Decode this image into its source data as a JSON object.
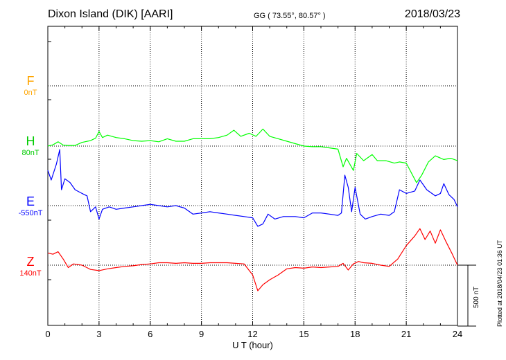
{
  "header": {
    "station": "Dixon Island (DIK)  [AARI]",
    "coords": "GG ( 73.55°,  80.57° )",
    "date": "2018/03/23"
  },
  "footer": {
    "plotted": "Plotted at 2018/04/23 01:36 UT",
    "scale_label": "500 nT"
  },
  "components": [
    {
      "letter": "F",
      "baseline": "0nT",
      "color": "#ffa500"
    },
    {
      "letter": "H",
      "baseline": "80nT",
      "color": "#00ff00"
    },
    {
      "letter": "E",
      "baseline": "-550nT",
      "color": "#0000ff"
    },
    {
      "letter": "Z",
      "baseline": "140nT",
      "color": "#ff0000"
    }
  ],
  "chart_data": {
    "type": "line",
    "xlabel": "U T (hour)",
    "x_ticks": [
      "0",
      "3",
      "6",
      "9",
      "12",
      "15",
      "18",
      "21",
      "24"
    ],
    "xlim": [
      0,
      24
    ],
    "grid": true,
    "legend": "left",
    "units": "nT",
    "scale_bar_nT": 500,
    "series": [
      {
        "name": "F",
        "color": "#ffa500",
        "baseline_nT": 0,
        "points": []
      },
      {
        "name": "H",
        "color": "#00ff00",
        "baseline_nT": 80,
        "points": [
          [
            0,
            80
          ],
          [
            0.3,
            90
          ],
          [
            0.6,
            115
          ],
          [
            0.9,
            88
          ],
          [
            1.2,
            85
          ],
          [
            1.6,
            85
          ],
          [
            2.0,
            110
          ],
          [
            2.5,
            125
          ],
          [
            2.8,
            145
          ],
          [
            3.0,
            200
          ],
          [
            3.2,
            150
          ],
          [
            3.5,
            170
          ],
          [
            4.0,
            150
          ],
          [
            4.5,
            140
          ],
          [
            5.0,
            125
          ],
          [
            5.5,
            120
          ],
          [
            6.0,
            125
          ],
          [
            6.5,
            115
          ],
          [
            7.0,
            140
          ],
          [
            7.5,
            120
          ],
          [
            8.0,
            120
          ],
          [
            8.5,
            140
          ],
          [
            9.0,
            140
          ],
          [
            9.5,
            140
          ],
          [
            10.0,
            150
          ],
          [
            10.5,
            170
          ],
          [
            10.9,
            210
          ],
          [
            11.3,
            160
          ],
          [
            11.8,
            185
          ],
          [
            12.2,
            160
          ],
          [
            12.4,
            190
          ],
          [
            12.6,
            220
          ],
          [
            13.0,
            160
          ],
          [
            13.5,
            140
          ],
          [
            14.0,
            120
          ],
          [
            14.5,
            100
          ],
          [
            15.0,
            80
          ],
          [
            15.5,
            75
          ],
          [
            16.0,
            75
          ],
          [
            16.5,
            65
          ],
          [
            17.0,
            55
          ],
          [
            17.3,
            -90
          ],
          [
            17.5,
            -20
          ],
          [
            17.9,
            -120
          ],
          [
            18.1,
            20
          ],
          [
            18.5,
            -40
          ],
          [
            19.0,
            10
          ],
          [
            19.3,
            -40
          ],
          [
            19.8,
            -40
          ],
          [
            20.3,
            -60
          ],
          [
            20.6,
            -50
          ],
          [
            21.0,
            -60
          ],
          [
            21.3,
            -140
          ],
          [
            21.6,
            -220
          ],
          [
            21.9,
            -160
          ],
          [
            22.3,
            -50
          ],
          [
            22.7,
            0
          ],
          [
            23.2,
            -30
          ],
          [
            23.6,
            -20
          ],
          [
            24.0,
            -40
          ]
        ]
      },
      {
        "name": "E",
        "color": "#0000ff",
        "baseline_nT": -550,
        "points": [
          [
            0,
            -260
          ],
          [
            0.2,
            -340
          ],
          [
            0.5,
            -210
          ],
          [
            0.7,
            -90
          ],
          [
            0.8,
            -420
          ],
          [
            1.0,
            -330
          ],
          [
            1.3,
            -360
          ],
          [
            1.6,
            -420
          ],
          [
            2.0,
            -450
          ],
          [
            2.3,
            -470
          ],
          [
            2.5,
            -600
          ],
          [
            2.8,
            -560
          ],
          [
            3.0,
            -660
          ],
          [
            3.2,
            -580
          ],
          [
            3.6,
            -560
          ],
          [
            4.0,
            -580
          ],
          [
            4.5,
            -570
          ],
          [
            5.0,
            -560
          ],
          [
            5.5,
            -550
          ],
          [
            6.0,
            -540
          ],
          [
            6.5,
            -550
          ],
          [
            7.0,
            -560
          ],
          [
            7.5,
            -550
          ],
          [
            8.0,
            -570
          ],
          [
            8.5,
            -620
          ],
          [
            9.0,
            -610
          ],
          [
            9.5,
            -600
          ],
          [
            10.0,
            -610
          ],
          [
            10.5,
            -620
          ],
          [
            11.0,
            -630
          ],
          [
            11.5,
            -640
          ],
          [
            12.0,
            -650
          ],
          [
            12.3,
            -720
          ],
          [
            12.6,
            -700
          ],
          [
            12.9,
            -620
          ],
          [
            13.3,
            -660
          ],
          [
            13.8,
            -640
          ],
          [
            14.5,
            -640
          ],
          [
            15.0,
            -650
          ],
          [
            15.5,
            -610
          ],
          [
            16.0,
            -610
          ],
          [
            16.5,
            -620
          ],
          [
            17.0,
            -630
          ],
          [
            17.2,
            -610
          ],
          [
            17.4,
            -300
          ],
          [
            17.6,
            -400
          ],
          [
            17.8,
            -600
          ],
          [
            18.0,
            -400
          ],
          [
            18.3,
            -620
          ],
          [
            18.6,
            -660
          ],
          [
            19.0,
            -640
          ],
          [
            19.5,
            -620
          ],
          [
            20.0,
            -630
          ],
          [
            20.3,
            -600
          ],
          [
            20.6,
            -420
          ],
          [
            21.0,
            -450
          ],
          [
            21.5,
            -430
          ],
          [
            21.8,
            -340
          ],
          [
            22.2,
            -420
          ],
          [
            22.7,
            -470
          ],
          [
            23.0,
            -450
          ],
          [
            23.2,
            -370
          ],
          [
            23.5,
            -460
          ],
          [
            23.8,
            -500
          ],
          [
            24.0,
            -560
          ]
        ]
      },
      {
        "name": "Z",
        "color": "#ff0000",
        "baseline_nT": 140,
        "points": [
          [
            0,
            240
          ],
          [
            0.3,
            230
          ],
          [
            0.6,
            250
          ],
          [
            0.9,
            190
          ],
          [
            1.2,
            120
          ],
          [
            1.5,
            150
          ],
          [
            2.0,
            140
          ],
          [
            2.5,
            105
          ],
          [
            3.0,
            95
          ],
          [
            3.5,
            110
          ],
          [
            4.0,
            120
          ],
          [
            4.5,
            130
          ],
          [
            5.0,
            135
          ],
          [
            5.5,
            145
          ],
          [
            6.0,
            150
          ],
          [
            6.5,
            160
          ],
          [
            7.0,
            160
          ],
          [
            7.5,
            155
          ],
          [
            8.0,
            160
          ],
          [
            8.5,
            155
          ],
          [
            9.0,
            155
          ],
          [
            9.5,
            160
          ],
          [
            10.0,
            160
          ],
          [
            10.5,
            160
          ],
          [
            11.0,
            155
          ],
          [
            11.5,
            150
          ],
          [
            12.0,
            60
          ],
          [
            12.3,
            -70
          ],
          [
            12.6,
            -20
          ],
          [
            13.0,
            20
          ],
          [
            13.5,
            60
          ],
          [
            14.0,
            110
          ],
          [
            14.5,
            120
          ],
          [
            15.0,
            115
          ],
          [
            15.5,
            125
          ],
          [
            16.0,
            120
          ],
          [
            16.5,
            125
          ],
          [
            17.0,
            130
          ],
          [
            17.3,
            155
          ],
          [
            17.6,
            100
          ],
          [
            17.9,
            150
          ],
          [
            18.2,
            170
          ],
          [
            18.5,
            160
          ],
          [
            19.0,
            155
          ],
          [
            19.5,
            140
          ],
          [
            20.0,
            130
          ],
          [
            20.5,
            190
          ],
          [
            21.0,
            300
          ],
          [
            21.5,
            380
          ],
          [
            21.8,
            440
          ],
          [
            22.1,
            350
          ],
          [
            22.4,
            420
          ],
          [
            22.7,
            320
          ],
          [
            23.0,
            430
          ],
          [
            23.3,
            340
          ],
          [
            23.7,
            230
          ],
          [
            24.0,
            140
          ]
        ]
      }
    ]
  }
}
